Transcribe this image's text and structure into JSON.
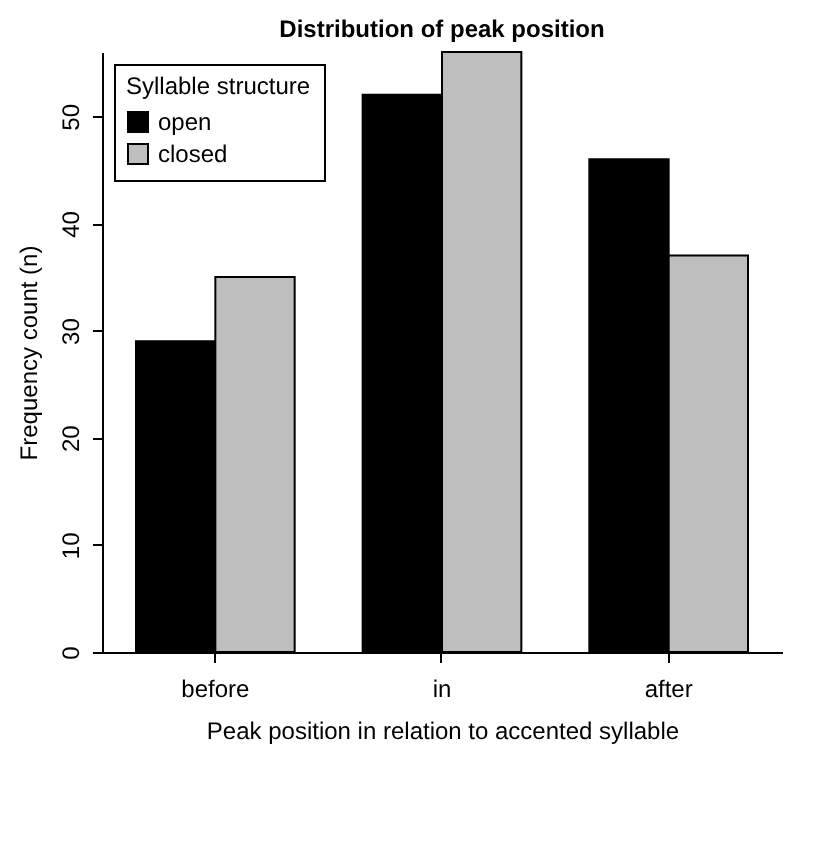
{
  "chart_data": {
    "type": "bar",
    "title": "Distribution of peak position",
    "xlabel": "Peak position in relation to accented syllable",
    "ylabel": "Frequency count (n)",
    "legend_title": "Syllable structure",
    "categories": [
      "before",
      "in",
      "after"
    ],
    "series": [
      {
        "name": "open",
        "color": "#000000",
        "values": [
          29,
          52,
          46
        ]
      },
      {
        "name": "closed",
        "color": "#bebebe",
        "values": [
          35,
          56,
          37
        ]
      }
    ],
    "ylim": [
      0,
      56
    ],
    "yticks": [
      0,
      10,
      20,
      30,
      40,
      50
    ],
    "legend": "top left",
    "grid": false
  }
}
